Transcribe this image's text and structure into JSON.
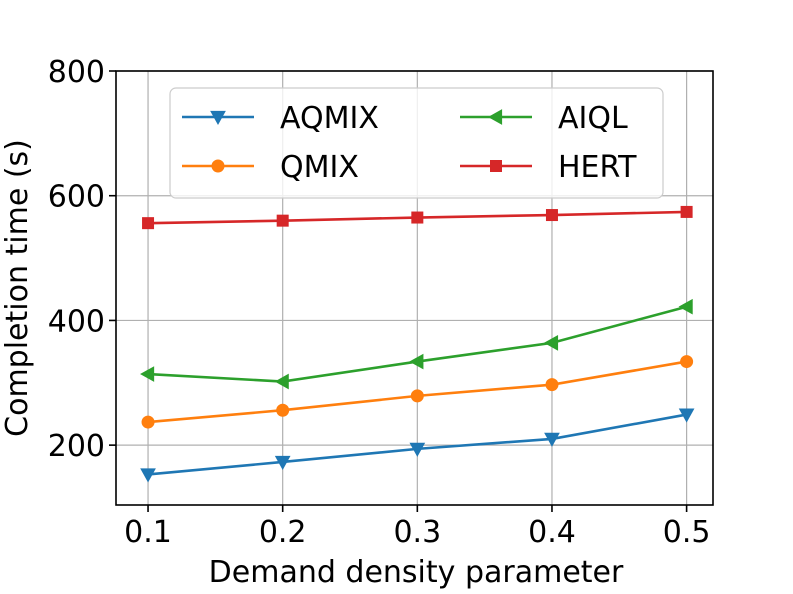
{
  "chart_data": {
    "type": "line",
    "title": "",
    "xlabel": "Demand density parameter",
    "ylabel": "Completion time (s)",
    "x": [
      0.1,
      0.2,
      0.3,
      0.4,
      0.5
    ],
    "x_tick_labels": [
      "0.1",
      "0.2",
      "0.3",
      "0.4",
      "0.5"
    ],
    "xlim": [
      0.0762,
      0.5196
    ],
    "y_ticks": [
      200,
      400,
      600,
      800
    ],
    "y_tick_labels": [
      "200",
      "400",
      "600",
      "800"
    ],
    "ylim": [
      104,
      800
    ],
    "grid": true,
    "legend_position": "upper-center",
    "legend_columns": 2,
    "series": [
      {
        "name": "AQMIX",
        "color": "#1f77b4",
        "marker": "triangle-down",
        "values": [
          153,
          173,
          194,
          210,
          249
        ]
      },
      {
        "name": "QMIX",
        "color": "#ff7f0e",
        "marker": "circle",
        "values": [
          237,
          256,
          279,
          297,
          334
        ]
      },
      {
        "name": "AIQL",
        "color": "#2ca02c",
        "marker": "triangle-left",
        "values": [
          314,
          302,
          334,
          364,
          422
        ]
      },
      {
        "name": "HERT",
        "color": "#d62728",
        "marker": "square",
        "values": [
          556,
          560,
          565,
          569,
          574
        ]
      }
    ]
  }
}
